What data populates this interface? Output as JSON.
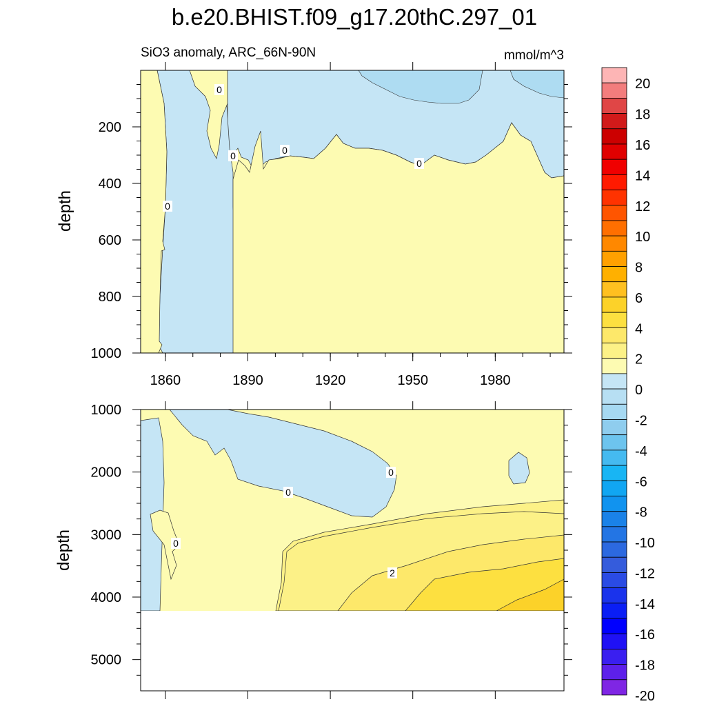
{
  "title": "b.e20.BHIST.f09_g17.20thC.297_01",
  "subtitle_left": "SiO3 anomaly, ARC_66N-90N",
  "subtitle_right": "mmol/m^3",
  "colors": {
    "neg_fill": "#c5e5f5",
    "neg_fill_deep": "#aedcf2",
    "pos_fill_0_1": "#fdfbb2",
    "pos_fill_1_2": "#fcf187",
    "pos_fill_2_3": "#fde86a",
    "pos_fill_3_4": "#fde040",
    "pos_fill_4_5": "#fcd229"
  },
  "chart_data": [
    {
      "type": "heatmap",
      "panel": "upper",
      "ylabel": "depth",
      "xticks": [
        1860,
        1890,
        1920,
        1950,
        1980
      ],
      "yticks": [
        200,
        400,
        600,
        800,
        1000
      ],
      "xlim": [
        1851,
        2005
      ],
      "ylim": [
        1000,
        0
      ],
      "contour_labels": [
        "0",
        "0",
        "0",
        "0",
        "0"
      ]
    },
    {
      "type": "heatmap",
      "panel": "lower",
      "ylabel": "depth",
      "yticks": [
        1000,
        2000,
        3000,
        4000,
        5000
      ],
      "xlim": [
        1851,
        2005
      ],
      "ylim": [
        5500,
        1000
      ],
      "contour_labels": [
        "0",
        "0",
        "0",
        "2"
      ]
    }
  ],
  "colorbar": {
    "levels": [
      20,
      18,
      16,
      14,
      12,
      10,
      8,
      6,
      4,
      2,
      0,
      -2,
      -4,
      -6,
      -8,
      -10,
      -12,
      -14,
      -16,
      -18,
      -20
    ],
    "colors": [
      "#fdb5b5",
      "#f37d7d",
      "#e04646",
      "#d11a1a",
      "#cc0000",
      "#e00000",
      "#f00000",
      "#ff1a00",
      "#ff3300",
      "#ff5500",
      "#ff6f00",
      "#ff8800",
      "#ffa000",
      "#ffb000",
      "#ffc020",
      "#fcd229",
      "#fde040",
      "#fde86a",
      "#fcf187",
      "#fdfbb2",
      "#c5e5f5",
      "#b7dff3",
      "#a6d9f2",
      "#8fcdee",
      "#6dc4ee",
      "#45baf0",
      "#18b5f4",
      "#11a6f2",
      "#1193ef",
      "#1a82e8",
      "#2375e4",
      "#2c69e0",
      "#355cdc",
      "#2a4be4",
      "#1a33ec",
      "#0a1ef5",
      "#0000ff",
      "#1f11f5",
      "#3a1ff0",
      "#5d20ea",
      "#7f26e4"
    ]
  }
}
